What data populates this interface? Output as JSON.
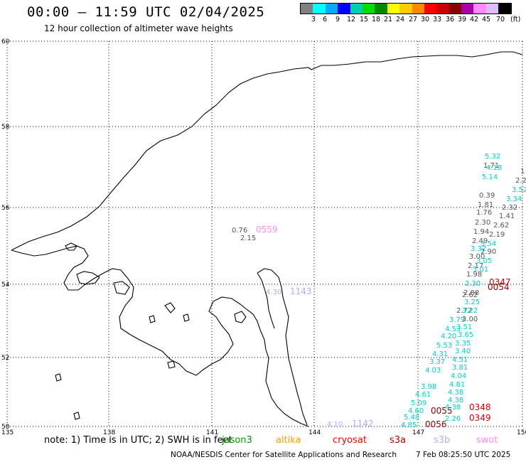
{
  "header": {
    "title": "00:00 – 11:59 UTC 02/04/2025",
    "subtitle": "12 hour collection of altimeter wave heights"
  },
  "legend": {
    "colors": [
      "#808080",
      "#00ffff",
      "#00aaff",
      "#0000ff",
      "#00d0b0",
      "#00dd00",
      "#008800",
      "#ffff00",
      "#ffcc00",
      "#ff8800",
      "#ff0000",
      "#cc0000",
      "#880000",
      "#aa00aa",
      "#ff88ff",
      "#ddbbff",
      "#000000"
    ],
    "labels": [
      "3",
      "6",
      "9",
      "12",
      "15",
      "18",
      "21",
      "24",
      "27",
      "30",
      "33",
      "36",
      "39",
      "42",
      "45",
      "70",
      "(ft)"
    ]
  },
  "map": {
    "lat_labels": [
      "60",
      "58",
      "56",
      "54",
      "52",
      "50"
    ],
    "lon_labels": [
      "135",
      "138",
      "141",
      "144",
      "147",
      "150"
    ],
    "observations": [
      {
        "text": "0.76",
        "color": "#555555"
      },
      {
        "text": "0559",
        "color": "#ff88ff"
      },
      {
        "text": "2.15",
        "color": "#555555"
      },
      {
        "text": "4.30",
        "color": "#aaaaff"
      },
      {
        "text": "1143",
        "color": "#aaaaff"
      },
      {
        "text": "4.10",
        "color": "#aaaaff"
      },
      {
        "text": "1142",
        "color": "#aaaaff"
      },
      {
        "text": "4.18",
        "color": "#00cccc"
      },
      {
        "text": "5.32",
        "color": "#00cccc"
      },
      {
        "text": "1.71",
        "color": "#555555"
      },
      {
        "text": "5.14",
        "color": "#00cccc"
      },
      {
        "text": "1",
        "color": "#555555"
      },
      {
        "text": "2.2",
        "color": "#555555"
      },
      {
        "text": "3.52",
        "color": "#00cccc"
      },
      {
        "text": "3.34",
        "color": "#00cccc"
      },
      {
        "text": "0.39",
        "color": "#555555"
      },
      {
        "text": "1.81",
        "color": "#555555"
      },
      {
        "text": "2.32",
        "color": "#555555"
      },
      {
        "text": "1.76",
        "color": "#555555"
      },
      {
        "text": "1.41",
        "color": "#555555"
      },
      {
        "text": "2.30",
        "color": "#555555"
      },
      {
        "text": "2.62",
        "color": "#555555"
      },
      {
        "text": "1.94",
        "color": "#555555"
      },
      {
        "text": "2.19",
        "color": "#555555"
      },
      {
        "text": "2.49",
        "color": "#555555"
      },
      {
        "text": "3.54",
        "color": "#00cccc"
      },
      {
        "text": "3.32",
        "color": "#00cccc"
      },
      {
        "text": "2.90",
        "color": "#555555"
      },
      {
        "text": "3.00",
        "color": "#555555"
      },
      {
        "text": "3.05",
        "color": "#00cccc"
      },
      {
        "text": "2.17",
        "color": "#555555"
      },
      {
        "text": "3.01",
        "color": "#00cccc"
      },
      {
        "text": "1.98",
        "color": "#555555"
      },
      {
        "text": "2.30",
        "color": "#00cccc"
      },
      {
        "text": "0347",
        "color": "#cc0000"
      },
      {
        "text": "0054",
        "color": "#880000"
      },
      {
        "text": "2.88",
        "color": "#555555"
      },
      {
        "text": "2.62",
        "color": "#555555"
      },
      {
        "text": "3.25",
        "color": "#00cccc"
      },
      {
        "text": "2.72",
        "color": "#555555"
      },
      {
        "text": "3.22",
        "color": "#00cccc"
      },
      {
        "text": "3.79",
        "color": "#00cccc"
      },
      {
        "text": "3.00",
        "color": "#555555"
      },
      {
        "text": "4.53",
        "color": "#00cccc"
      },
      {
        "text": "3.51",
        "color": "#00cccc"
      },
      {
        "text": "4.20",
        "color": "#00cccc"
      },
      {
        "text": "3.65",
        "color": "#00cccc"
      },
      {
        "text": "5.53",
        "color": "#00cccc"
      },
      {
        "text": "3.35",
        "color": "#00cccc"
      },
      {
        "text": "4.31",
        "color": "#00cccc"
      },
      {
        "text": "3.40",
        "color": "#00cccc"
      },
      {
        "text": "3.37",
        "color": "#00cccc"
      },
      {
        "text": "4.51",
        "color": "#00cccc"
      },
      {
        "text": "4.03",
        "color": "#00cccc"
      },
      {
        "text": "3.81",
        "color": "#00cccc"
      },
      {
        "text": "3.98",
        "color": "#00cccc"
      },
      {
        "text": "4.04",
        "color": "#00cccc"
      },
      {
        "text": "4.61",
        "color": "#00cccc"
      },
      {
        "text": "4.81",
        "color": "#00cccc"
      },
      {
        "text": "5.09",
        "color": "#00cccc"
      },
      {
        "text": "4.38",
        "color": "#00cccc"
      },
      {
        "text": "4.60",
        "color": "#00cccc"
      },
      {
        "text": "4.38",
        "color": "#00cccc"
      },
      {
        "text": "0055",
        "color": "#880000"
      },
      {
        "text": "4.38",
        "color": "#00cccc"
      },
      {
        "text": "0348",
        "color": "#cc0000"
      },
      {
        "text": "5.48",
        "color": "#00cccc"
      },
      {
        "text": "2.26",
        "color": "#00cccc"
      },
      {
        "text": "0349",
        "color": "#cc0000"
      },
      {
        "text": "4.85",
        "color": "#00cccc"
      },
      {
        "text": "0056",
        "color": "#880000"
      }
    ]
  },
  "footer": {
    "note": "note: 1) Time is in UTC; 2) SWH is in feet",
    "satellites": [
      {
        "name": "jason3",
        "color": "#009900"
      },
      {
        "name": "altika",
        "color": "#ff9900"
      },
      {
        "name": "cryosat",
        "color": "#ff0000"
      },
      {
        "name": "s3a",
        "color": "#aa0000"
      },
      {
        "name": "s3b",
        "color": "#bbaaee"
      },
      {
        "name": "swot",
        "color": "#ff88ff"
      }
    ],
    "credit": "NOAA/NESDIS Center for Satellite Applications and Research",
    "timestamp": "7 Feb 08:25:50 UTC 2025"
  }
}
